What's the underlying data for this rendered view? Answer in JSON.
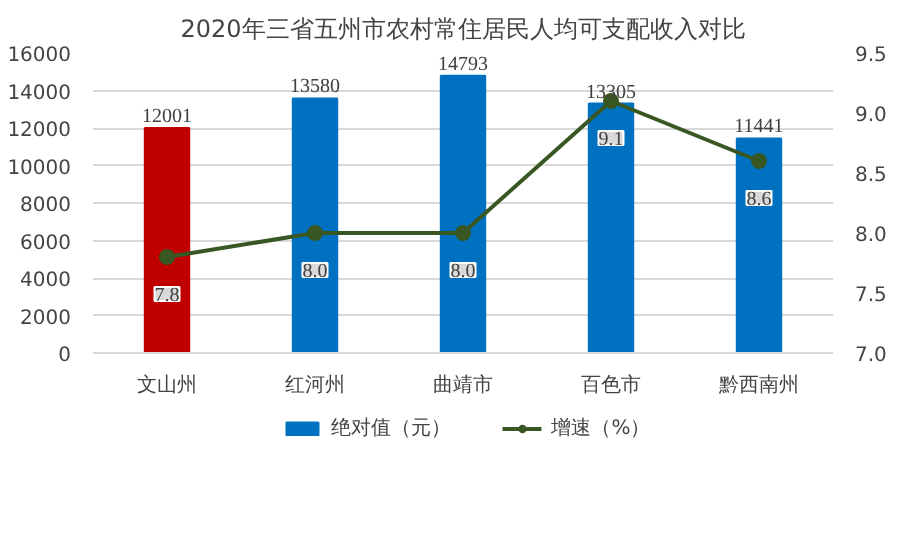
{
  "chart_data": {
    "type": "bar",
    "title": "2020年三省五州市农村常住居民人均可支配收入对比",
    "categories": [
      "文山州",
      "红河州",
      "曲靖市",
      "百色市",
      "黔西南州"
    ],
    "series": [
      {
        "name": "绝对值（元）",
        "colors": [
          "#c00000",
          "#0070c0",
          "#0070c0",
          "#0070c0",
          "#0070c0"
        ],
        "values": [
          12001,
          13580,
          14793,
          13305,
          11441
        ]
      },
      {
        "name": "增速（%）",
        "type": "line",
        "axis": "y2",
        "color": "#385723",
        "marker": "circle",
        "values": [
          7.8,
          8.0,
          8.0,
          9.1,
          8.6
        ],
        "value_labels": [
          "7.8",
          "8.0",
          "8.0",
          "9.1",
          "8.6"
        ]
      }
    ],
    "ylim": [
      0,
      16000
    ],
    "yticks": [
      0,
      2000,
      4000,
      6000,
      8000,
      10000,
      12000,
      14000,
      16000
    ],
    "y2lim": [
      7.0,
      9.5
    ],
    "y2ticks": [
      {
        "value": 7.0,
        "label": "7.0"
      },
      {
        "value": 7.5,
        "label": "7.5"
      },
      {
        "value": 8.0,
        "label": "8.0"
      },
      {
        "value": 8.5,
        "label": "8.5"
      },
      {
        "value": 9.0,
        "label": "9.0"
      },
      {
        "value": 9.5,
        "label": "9.5"
      }
    ],
    "grid": "y",
    "legend": "bottom",
    "data_labels": true
  }
}
